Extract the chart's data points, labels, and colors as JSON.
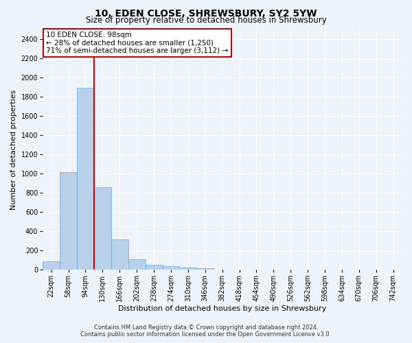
{
  "title": "10, EDEN CLOSE, SHREWSBURY, SY2 5YW",
  "subtitle": "Size of property relative to detached houses in Shrewsbury",
  "xlabel": "Distribution of detached houses by size in Shrewsbury",
  "ylabel": "Number of detached properties",
  "categories": [
    "22sqm",
    "58sqm",
    "94sqm",
    "130sqm",
    "166sqm",
    "202sqm",
    "238sqm",
    "274sqm",
    "310sqm",
    "346sqm",
    "382sqm",
    "418sqm",
    "454sqm",
    "490sqm",
    "526sqm",
    "562sqm",
    "598sqm",
    "634sqm",
    "670sqm",
    "706sqm",
    "742sqm"
  ],
  "values": [
    85,
    1010,
    1890,
    860,
    315,
    110,
    48,
    38,
    25,
    15,
    0,
    0,
    0,
    0,
    0,
    0,
    0,
    0,
    0,
    0,
    0
  ],
  "bar_color": "#b8d0ea",
  "bar_edge_color": "#6aaad4",
  "annotation_title": "10 EDEN CLOSE: 98sqm",
  "annotation_line1": "← 28% of detached houses are smaller (1,250)",
  "annotation_line2": "71% of semi-detached houses are larger (3,112) →",
  "annotation_box_color": "#ffffff",
  "annotation_box_edge": "#cc0000",
  "vline_color": "#cc0000",
  "ylim": [
    0,
    2500
  ],
  "yticks": [
    0,
    200,
    400,
    600,
    800,
    1000,
    1200,
    1400,
    1600,
    1800,
    2000,
    2200,
    2400
  ],
  "footer1": "Contains HM Land Registry data © Crown copyright and database right 2024.",
  "footer2": "Contains public sector information licensed under the Open Government Licence v3.0.",
  "bg_color": "#eef2f9",
  "grid_color": "#ffffff",
  "title_fontsize": 10,
  "subtitle_fontsize": 8.5,
  "ylabel_fontsize": 8,
  "xlabel_fontsize": 8,
  "tick_fontsize": 7,
  "annotation_fontsize": 7.5,
  "footer_fontsize": 6
}
